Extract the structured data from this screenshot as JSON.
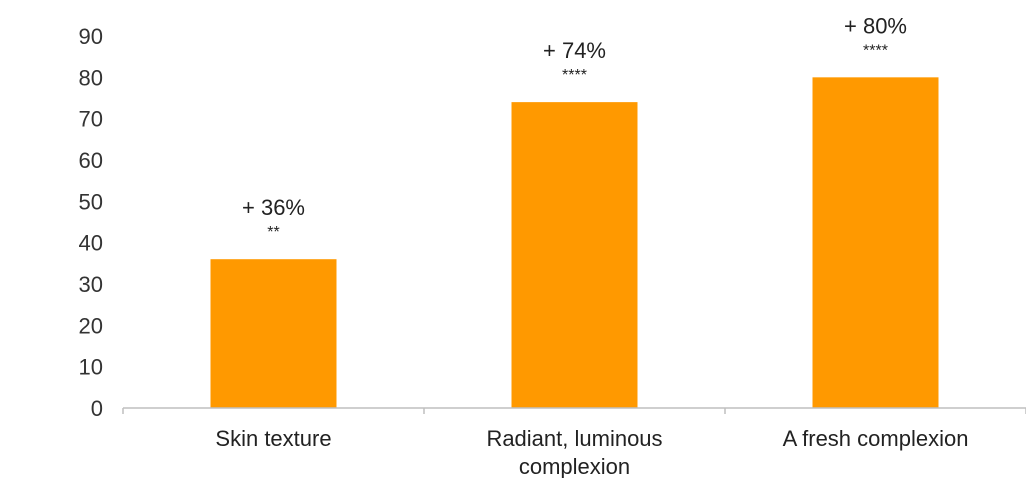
{
  "chart_data": {
    "type": "bar",
    "categories": [
      "Skin texture",
      [
        "Radiant, luminous",
        "complexion"
      ],
      "A fresh complexion"
    ],
    "values": [
      36,
      74,
      80
    ],
    "value_labels": [
      "+ 36%",
      "+ 74%",
      "+ 80%"
    ],
    "significance_labels": [
      "**",
      "****",
      "****"
    ],
    "ylim": [
      0,
      90
    ],
    "yticks": [
      0,
      10,
      20,
      30,
      40,
      50,
      60,
      70,
      80,
      90
    ],
    "grid": false,
    "bar_color": "#FF9900",
    "axis_color": "#BFBFBF"
  }
}
